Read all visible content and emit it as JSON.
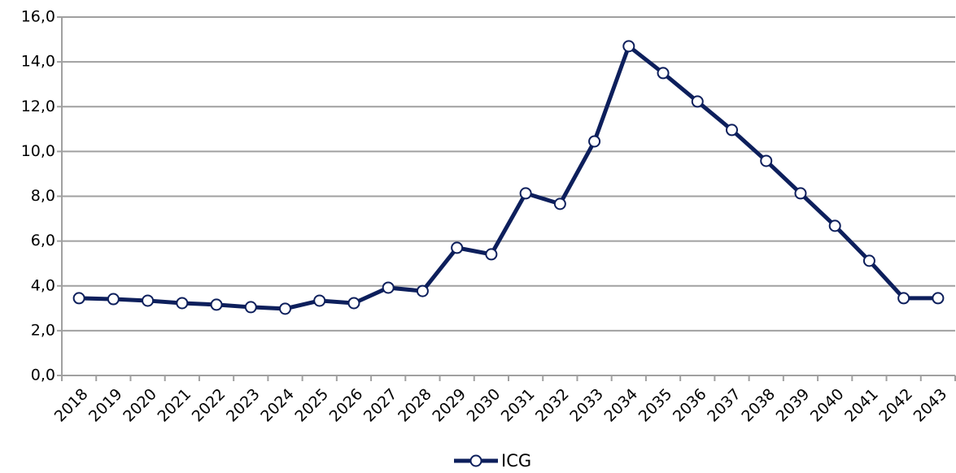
{
  "chart_data": {
    "type": "line",
    "categories": [
      "2018",
      "2019",
      "2020",
      "2021",
      "2022",
      "2023",
      "2024",
      "2025",
      "2026",
      "2027",
      "2028",
      "2029",
      "2030",
      "2031",
      "2032",
      "2033",
      "2034",
      "2035",
      "2036",
      "2037",
      "2038",
      "2039",
      "2040",
      "2041",
      "2042",
      "2043"
    ],
    "series": [
      {
        "name": "ICG",
        "color": "#0d1f5c",
        "values": [
          3.45,
          3.41,
          3.34,
          3.23,
          3.16,
          3.05,
          2.98,
          3.34,
          3.23,
          3.92,
          3.77,
          5.7,
          5.41,
          8.13,
          7.66,
          10.45,
          14.7,
          13.5,
          12.23,
          10.96,
          9.58,
          8.13,
          6.68,
          5.12,
          3.45,
          3.45
        ]
      }
    ],
    "ylim": [
      0,
      16
    ],
    "yticks": [
      {
        "value": 0,
        "label": "0,0"
      },
      {
        "value": 2,
        "label": "2,0"
      },
      {
        "value": 4,
        "label": "4,0"
      },
      {
        "value": 6,
        "label": "6,0"
      },
      {
        "value": 8,
        "label": "8,0"
      },
      {
        "value": 10,
        "label": "10,0"
      },
      {
        "value": 12,
        "label": "12,0"
      },
      {
        "value": 14,
        "label": "14,0"
      },
      {
        "value": 16,
        "label": "16,0"
      }
    ],
    "grid": true,
    "legend": "bottom"
  }
}
